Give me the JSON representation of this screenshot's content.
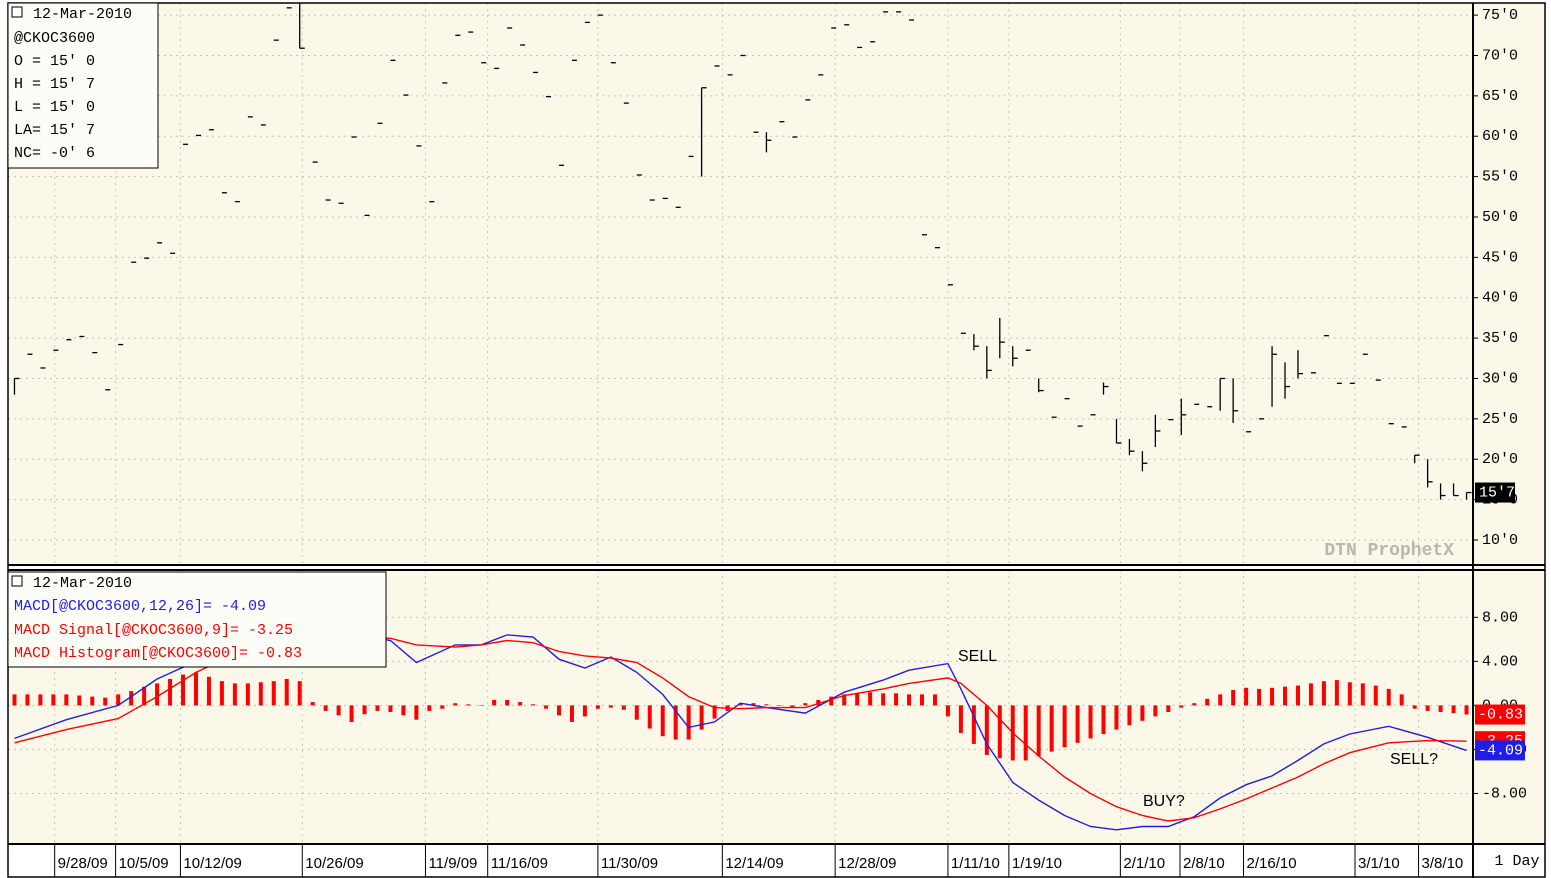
{
  "chart_data": [
    {
      "type": "ohlc",
      "date": "12-Mar-2010",
      "symbol": "@CKOC3600",
      "quote": [
        "O = 15' 0",
        "H = 15' 7",
        "L = 15' 0",
        "LA= 15' 7",
        "NC= -0' 6"
      ],
      "watermark": "DTN ProphetX",
      "last_label": "15'7",
      "color": "#000000",
      "xlim": [
        -0.5,
        112.5
      ],
      "ylim": [
        6.9,
        76.5
      ],
      "yticks": [
        {
          "value": 10,
          "label": "10'0"
        },
        {
          "value": 15,
          "label": "15'0"
        },
        {
          "value": 20,
          "label": "20'0"
        },
        {
          "value": 25,
          "label": "25'0"
        },
        {
          "value": 30,
          "label": "30'0"
        },
        {
          "value": 35,
          "label": "35'0"
        },
        {
          "value": 40,
          "label": "40'0"
        },
        {
          "value": 45,
          "label": "45'0"
        },
        {
          "value": 50,
          "label": "50'0"
        },
        {
          "value": 55,
          "label": "55'0"
        },
        {
          "value": 60,
          "label": "60'0"
        },
        {
          "value": 65,
          "label": "65'0"
        },
        {
          "value": 70,
          "label": "70'0"
        },
        {
          "value": 75,
          "label": "75'0"
        }
      ],
      "grid": true,
      "high": [
        30,
        33,
        31.3,
        33.5,
        34.8,
        35.2,
        33.2,
        28.6,
        34.2,
        44.4,
        44.9,
        46.8,
        45.5,
        59,
        60.1,
        60.8,
        53,
        51.9,
        62.4,
        61.4,
        71.9,
        75.9,
        76.5,
        56.8,
        52.1,
        51.7,
        59.9,
        50.2,
        61.6,
        69.4,
        65.1,
        58.8,
        51.9,
        66.6,
        72.5,
        72.9,
        69.1,
        68.4,
        73.4,
        71.3,
        67.9,
        64.9,
        56.4,
        69.4,
        74.1,
        75,
        69.1,
        64.1,
        55.2,
        52.1,
        52.3,
        51.2,
        57.5,
        66,
        68.7,
        67.6,
        70,
        60.5,
        60.5,
        61.8,
        59.9,
        64.5,
        67.6,
        73.4,
        73.8,
        71,
        71.7,
        75.4,
        75.4,
        74.4,
        47.8,
        46.2,
        41.6,
        35.6,
        35.5,
        34,
        37.5,
        34,
        33.5,
        30,
        25.2,
        27.5,
        24.1,
        25.5,
        29.5,
        25,
        22.5,
        21,
        25.5,
        24.9,
        27.5,
        26.8,
        26.5,
        30,
        30,
        23.4,
        25,
        34,
        32,
        33.5,
        30.7,
        35.3,
        29.4,
        29.4,
        33,
        29.8,
        24.4,
        24,
        20.5,
        20,
        17,
        17,
        15.875
      ],
      "low": [
        28,
        33,
        31.3,
        33.5,
        34.8,
        35.2,
        33.2,
        28.6,
        34.2,
        44.4,
        44.9,
        46.8,
        45.5,
        59,
        60.1,
        60.8,
        53,
        51.9,
        62.4,
        61.4,
        71.9,
        75.9,
        70.9,
        56.8,
        52.1,
        51.7,
        59.9,
        50.2,
        61.6,
        69.4,
        65.1,
        58.8,
        51.9,
        66.6,
        72.5,
        72.9,
        69.1,
        68.4,
        73.4,
        71.3,
        67.9,
        64.9,
        56.4,
        69.4,
        74.1,
        75,
        69.1,
        64.1,
        55.2,
        52.1,
        52.3,
        51.2,
        57.5,
        55,
        68.7,
        67.6,
        70,
        60.5,
        58,
        61.8,
        59.9,
        64.5,
        67.6,
        73.4,
        73.8,
        71,
        71.7,
        75.4,
        75.4,
        74.4,
        47.8,
        46.2,
        41.6,
        35.6,
        33.5,
        30,
        32.5,
        31.5,
        33.5,
        28.3,
        25.2,
        27.5,
        24.1,
        25.5,
        28,
        22,
        20.5,
        18.5,
        21.5,
        24.9,
        23,
        26.8,
        26.5,
        26,
        24.5,
        23.4,
        25,
        26.5,
        27.5,
        30,
        30.7,
        35.3,
        29.4,
        29.4,
        33,
        29.8,
        24.4,
        24,
        19.5,
        16.5,
        15,
        15.5,
        15
      ],
      "close": [
        30,
        33,
        31.3,
        33.5,
        34.8,
        35.2,
        33.2,
        28.6,
        34.2,
        44.4,
        44.9,
        46.8,
        45.5,
        59,
        60.1,
        60.8,
        53,
        51.9,
        62.4,
        61.4,
        71.9,
        75.9,
        70.9,
        56.8,
        52.1,
        51.7,
        59.9,
        50.2,
        61.6,
        69.4,
        65.1,
        58.8,
        51.9,
        66.6,
        72.5,
        72.9,
        69.1,
        68.4,
        73.4,
        71.3,
        67.9,
        64.9,
        56.4,
        69.4,
        74.1,
        75,
        69.1,
        64.1,
        55.2,
        52.1,
        52.3,
        51.2,
        57.5,
        66,
        68.7,
        67.6,
        70,
        60.5,
        59.5,
        61.8,
        59.9,
        64.5,
        67.6,
        73.4,
        73.8,
        71,
        71.7,
        75.4,
        75.4,
        74.4,
        47.8,
        46.2,
        41.6,
        35.6,
        34,
        31,
        34.5,
        32.5,
        33.5,
        28.5,
        25.2,
        27.5,
        24.1,
        25.5,
        29,
        22,
        21,
        19.5,
        23.5,
        24.9,
        25.5,
        26.8,
        26.5,
        30,
        26,
        23.4,
        25,
        33,
        29,
        30.6,
        30.7,
        35.3,
        29.4,
        29.4,
        33,
        29.8,
        24.4,
        24,
        20.5,
        17.2,
        15.5,
        15.5,
        15.875
      ]
    },
    {
      "type": "macd",
      "date": "12-Mar-2010",
      "timeframe": "1 Day",
      "annotations": [
        "SELL",
        "BUY?",
        "SELL?"
      ],
      "xlim": [
        -0.5,
        112.5
      ],
      "ylim": [
        -12.5,
        12.3
      ],
      "yticks": [
        {
          "value": -8,
          "label": "-8.00"
        },
        {
          "value": -4,
          "label": "-4.00"
        },
        {
          "value": 0,
          "label": "0.00"
        },
        {
          "value": 4,
          "label": "4.00"
        },
        {
          "value": 8,
          "label": "8.00"
        }
      ],
      "xticks": [
        {
          "value": 3.1,
          "label": "9/28/09"
        },
        {
          "value": 7.8,
          "label": "10/5/09"
        },
        {
          "value": 12.8,
          "label": "10/12/09"
        },
        {
          "value": 22.2,
          "label": "10/26/09"
        },
        {
          "value": 31.7,
          "label": "11/9/09"
        },
        {
          "value": 36.5,
          "label": "11/16/09"
        },
        {
          "value": 45,
          "label": "11/30/09"
        },
        {
          "value": 54.6,
          "label": "12/14/09"
        },
        {
          "value": 63.3,
          "label": "12/28/09"
        },
        {
          "value": 72,
          "label": "1/11/10"
        },
        {
          "value": 76.7,
          "label": "1/19/10"
        },
        {
          "value": 85.3,
          "label": "2/1/10"
        },
        {
          "value": 89.9,
          "label": "2/8/10"
        },
        {
          "value": 94.8,
          "label": "2/16/10"
        },
        {
          "value": 103.4,
          "label": "3/1/10"
        },
        {
          "value": 108.3,
          "label": "3/8/10"
        }
      ],
      "grid": true,
      "x": [
        0,
        4,
        8,
        11,
        14,
        18,
        22,
        26,
        29,
        31,
        34,
        36,
        38,
        40,
        42,
        44,
        46,
        48,
        50,
        52,
        54,
        56,
        58,
        61,
        64,
        67,
        69,
        72,
        73,
        75,
        77,
        79,
        81,
        83,
        85,
        87,
        89,
        91,
        93,
        95,
        97,
        99,
        101,
        103,
        106,
        109,
        112
      ],
      "series": [
        {
          "name": "MACD[@CKOC3600,12,26]= -4.09",
          "color": "#1e1ee6",
          "last_label": "-4.09",
          "values": [
            -3,
            -1.3,
            0,
            2.4,
            4,
            5,
            6,
            6.5,
            5.9,
            3.9,
            5.5,
            5.5,
            6.4,
            6.2,
            4.2,
            3.4,
            4.4,
            3,
            1,
            -2,
            -1.5,
            0.2,
            -0.2,
            -0.7,
            1.2,
            2.3,
            3.2,
            3.8,
            1.5,
            -3.5,
            -7,
            -8.6,
            -10,
            -11,
            -11.3,
            -11,
            -11,
            -10.1,
            -8.4,
            -7.2,
            -6.4,
            -5,
            -3.5,
            -2.6,
            -1.9,
            -2.9,
            -4.09
          ]
        },
        {
          "name": "MACD Signal[@CKOC3600,9]= -3.25",
          "color": "#ff0000",
          "last_label": "-3.25",
          "values": [
            -3.4,
            -2.2,
            -1.2,
            0.8,
            3,
            5.2,
            5.9,
            6.2,
            6.1,
            5.5,
            5.3,
            5.5,
            5.9,
            5.7,
            4.9,
            4.5,
            4.3,
            3.9,
            2.5,
            0.8,
            -0.2,
            -0.3,
            -0.2,
            -0.2,
            0.9,
            1.5,
            2,
            2.5,
            2,
            0,
            -2.5,
            -4.6,
            -6.5,
            -8,
            -9.2,
            -10,
            -10.5,
            -10.2,
            -9.4,
            -8.5,
            -7.5,
            -6.5,
            -5.3,
            -4.3,
            -3.4,
            -3.2,
            -3.25
          ]
        }
      ],
      "histogram": {
        "name": "MACD Histogram[@CKOC3600]= -0.83",
        "color": "#ff0000",
        "last_label": "-0.83",
        "values": [
          1,
          1,
          1,
          1,
          1,
          0.9,
          0.8,
          0.7,
          1,
          1.3,
          1.7,
          2,
          2.4,
          2.8,
          3,
          2.6,
          2.2,
          2,
          2,
          2.1,
          2.2,
          2.4,
          2.2,
          0.3,
          -0.5,
          -0.9,
          -1.5,
          -0.8,
          -0.5,
          -0.6,
          -0.9,
          -1.3,
          -0.5,
          -0.3,
          0.2,
          0.1,
          0,
          0.5,
          0.5,
          0.3,
          0.1,
          -0.3,
          -0.9,
          -1.5,
          -1,
          -0.3,
          -0.2,
          -0.4,
          -1.3,
          -2.1,
          -2.8,
          -3.1,
          -3.1,
          -2.2,
          -1.2,
          -0.5,
          0.2,
          0.2,
          0.1,
          0,
          -0.2,
          0.2,
          0.5,
          0.8,
          1,
          1.1,
          1.2,
          1.1,
          1.1,
          1,
          1,
          1,
          -1,
          -2.5,
          -3.5,
          -4.5,
          -4.8,
          -5,
          -5,
          -4.6,
          -4.2,
          -3.8,
          -3.4,
          -3,
          -2.6,
          -2.2,
          -1.8,
          -1.4,
          -1,
          -0.6,
          -0.2,
          0.2,
          0.6,
          1,
          1.4,
          1.6,
          1.5,
          1.6,
          1.7,
          1.8,
          2,
          2.2,
          2.3,
          2.1,
          2,
          1.8,
          1.5,
          1,
          -0.3,
          -0.5,
          -0.6,
          -0.7,
          -0.83
        ]
      }
    }
  ]
}
